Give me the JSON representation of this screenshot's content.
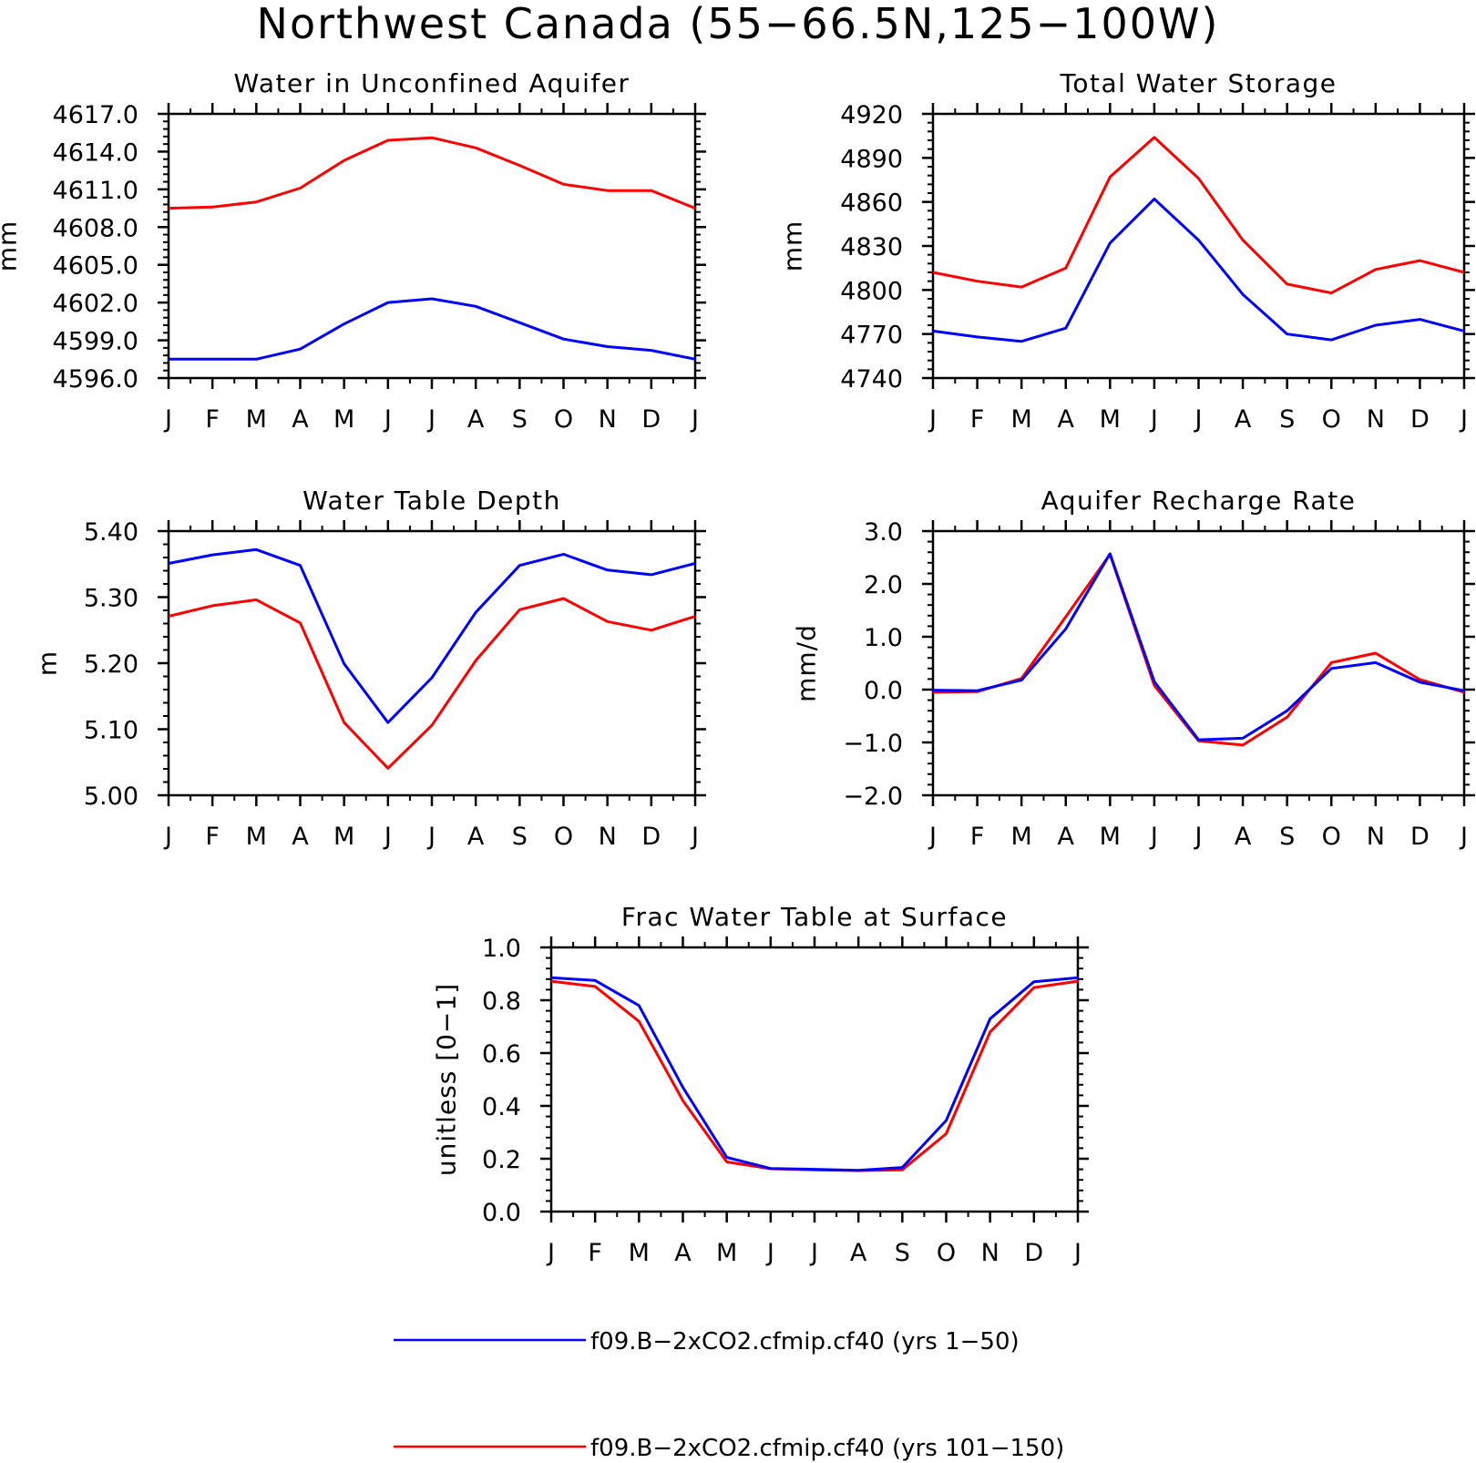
{
  "figure": {
    "title": "Northwest Canada (55−66.5N,125−100W)"
  },
  "legend": [
    {
      "label": "f09.B−2xCO2.cfmip.cf40 (yrs 1−50)",
      "color": "#0000ff"
    },
    {
      "label": "f09.B−2xCO2.cfmip.cf40 (yrs 101−150)",
      "color": "#ff0000"
    }
  ],
  "chart_data": [
    {
      "type": "line",
      "title": "Water in Unconfined Aquifer",
      "ylabel": "mm",
      "categories": [
        "J",
        "F",
        "M",
        "A",
        "M",
        "J",
        "J",
        "A",
        "S",
        "O",
        "N",
        "D",
        "J"
      ],
      "ylim": [
        4596.0,
        4617.0
      ],
      "yticks": [
        "4596.0",
        "4599.0",
        "4602.0",
        "4605.0",
        "4608.0",
        "4611.0",
        "4614.0",
        "4617.0"
      ],
      "series": [
        {
          "name": "f09.B−2xCO2.cfmip.cf40 (yrs 1−50)",
          "color": "#0000ff",
          "values": [
            4597.5,
            4597.5,
            4597.5,
            4598.3,
            4600.3,
            4602.0,
            4602.3,
            4601.7,
            4600.4,
            4599.1,
            4598.5,
            4598.2,
            4597.5
          ]
        },
        {
          "name": "f09.B−2xCO2.cfmip.cf40 (yrs 101−150)",
          "color": "#ff0000",
          "values": [
            4609.5,
            4609.6,
            4610.0,
            4611.1,
            4613.3,
            4614.9,
            4615.1,
            4614.3,
            4612.9,
            4611.4,
            4610.9,
            4610.9,
            4609.5
          ]
        }
      ]
    },
    {
      "type": "line",
      "title": "Total Water Storage",
      "ylabel": "mm",
      "categories": [
        "J",
        "F",
        "M",
        "A",
        "M",
        "J",
        "J",
        "A",
        "S",
        "O",
        "N",
        "D",
        "J"
      ],
      "ylim": [
        4740,
        4920
      ],
      "yticks": [
        "4740",
        "4770",
        "4800",
        "4830",
        "4860",
        "4890",
        "4920"
      ],
      "series": [
        {
          "name": "f09.B−2xCO2.cfmip.cf40 (yrs 1−50)",
          "color": "#0000ff",
          "values": [
            4772,
            4768,
            4765,
            4774,
            4832,
            4862,
            4834,
            4797,
            4770,
            4766,
            4776,
            4780,
            4772
          ]
        },
        {
          "name": "f09.B−2xCO2.cfmip.cf40 (yrs 101−150)",
          "color": "#ff0000",
          "values": [
            4812,
            4806,
            4802,
            4815,
            4877,
            4904,
            4876,
            4834,
            4804,
            4798,
            4814,
            4820,
            4812
          ]
        }
      ]
    },
    {
      "type": "line",
      "title": "Water Table Depth",
      "ylabel": "m",
      "categories": [
        "J",
        "F",
        "M",
        "A",
        "M",
        "J",
        "J",
        "A",
        "S",
        "O",
        "N",
        "D",
        "J"
      ],
      "ylim": [
        5.0,
        5.4
      ],
      "yticks": [
        "5.00",
        "5.10",
        "5.20",
        "5.30",
        "5.40"
      ],
      "series": [
        {
          "name": "f09.B−2xCO2.cfmip.cf40 (yrs 1−50)",
          "color": "#0000ff",
          "values": [
            5.351,
            5.364,
            5.372,
            5.348,
            5.199,
            5.11,
            5.178,
            5.277,
            5.348,
            5.365,
            5.341,
            5.334,
            5.351
          ]
        },
        {
          "name": "f09.B−2xCO2.cfmip.cf40 (yrs 101−150)",
          "color": "#ff0000",
          "values": [
            5.271,
            5.287,
            5.296,
            5.261,
            5.11,
            5.041,
            5.106,
            5.204,
            5.281,
            5.298,
            5.263,
            5.25,
            5.271
          ]
        }
      ]
    },
    {
      "type": "line",
      "title": "Aquifer Recharge Rate",
      "ylabel": "mm/d",
      "categories": [
        "J",
        "F",
        "M",
        "A",
        "M",
        "J",
        "J",
        "A",
        "S",
        "O",
        "N",
        "D",
        "J"
      ],
      "ylim": [
        -2.0,
        3.0
      ],
      "yticks": [
        "−2.0",
        "−1.0",
        "0.0",
        "1.0",
        "2.0",
        "3.0"
      ],
      "series": [
        {
          "name": "f09.B−2xCO2.cfmip.cf40 (yrs 1−50)",
          "color": "#0000ff",
          "values": [
            -0.01,
            -0.02,
            0.18,
            1.15,
            2.57,
            0.15,
            -0.95,
            -0.92,
            -0.4,
            0.4,
            0.51,
            0.14,
            -0.02
          ]
        },
        {
          "name": "f09.B−2xCO2.cfmip.cf40 (yrs 101−150)",
          "color": "#ff0000",
          "values": [
            -0.05,
            -0.04,
            0.21,
            1.38,
            2.56,
            0.08,
            -0.97,
            -1.05,
            -0.52,
            0.51,
            0.69,
            0.19,
            -0.05
          ]
        }
      ]
    },
    {
      "type": "line",
      "title": "Frac Water Table at Surface",
      "ylabel": "unitless [0−1]",
      "categories": [
        "J",
        "F",
        "M",
        "A",
        "M",
        "J",
        "J",
        "A",
        "S",
        "O",
        "N",
        "D",
        "J"
      ],
      "ylim": [
        0.0,
        1.0
      ],
      "yticks": [
        "0.0",
        "0.2",
        "0.4",
        "0.6",
        "0.8",
        "1.0"
      ],
      "series": [
        {
          "name": "f09.B−2xCO2.cfmip.cf40 (yrs 1−50)",
          "color": "#0000ff",
          "values": [
            0.885,
            0.875,
            0.78,
            0.47,
            0.205,
            0.163,
            0.16,
            0.156,
            0.167,
            0.345,
            0.73,
            0.87,
            0.885
          ]
        },
        {
          "name": "f09.B−2xCO2.cfmip.cf40 (yrs 101−150)",
          "color": "#ff0000",
          "values": [
            0.872,
            0.852,
            0.72,
            0.42,
            0.188,
            0.162,
            0.158,
            0.155,
            0.158,
            0.295,
            0.68,
            0.848,
            0.872
          ]
        }
      ]
    }
  ]
}
